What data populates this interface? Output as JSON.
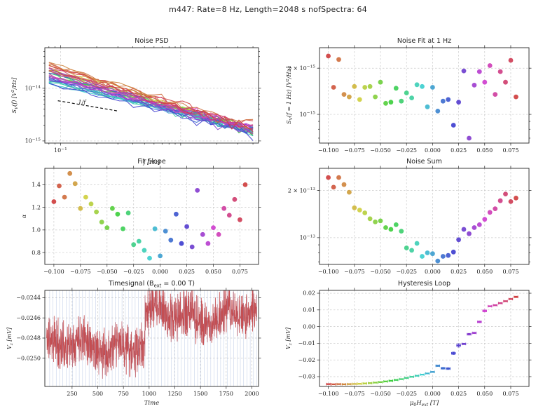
{
  "figure": {
    "title": "m447:  Rate=8 Hz,  Length=2048 s  nofSpectra:  64"
  },
  "colors": {
    "background": "#ffffff",
    "axis": "#262626",
    "text": "#1f1f1f",
    "grid": "#c9c9c9",
    "signal_red": "#c44e52",
    "segment_blue": "#8fa8d6",
    "guide_black": "#111111",
    "colormap": "hsv"
  },
  "field_sweep_T": [
    -0.1,
    -0.095,
    -0.09,
    -0.085,
    -0.08,
    -0.075,
    -0.07,
    -0.065,
    -0.06,
    -0.055,
    -0.05,
    -0.045,
    -0.04,
    -0.035,
    -0.03,
    -0.025,
    -0.02,
    -0.015,
    -0.01,
    -0.005,
    0.0,
    0.005,
    0.01,
    0.015,
    0.02,
    0.025,
    0.03,
    0.035,
    0.04,
    0.045,
    0.05,
    0.055,
    0.06,
    0.065,
    0.07,
    0.075,
    0.08
  ],
  "field_ticks": [
    {
      "v": -0.1,
      "label": "−0.100"
    },
    {
      "v": -0.075,
      "label": "−0.075"
    },
    {
      "v": -0.05,
      "label": "−0.050"
    },
    {
      "v": -0.025,
      "label": "−0.025"
    },
    {
      "v": 0.0,
      "label": "0.000"
    },
    {
      "v": 0.025,
      "label": "0.025"
    },
    {
      "v": 0.05,
      "label": "0.050"
    },
    {
      "v": 0.075,
      "label": "0.075"
    }
  ],
  "chart_data": [
    {
      "id": "noise_psd",
      "type": "line",
      "title": "Noise PSD",
      "xlabel": "f [Hz]",
      "ylabel": "S_{V}(f) [V^{2}/Hz]",
      "xlog": true,
      "ylog": true,
      "xlim": [
        0.074,
        4.45
      ],
      "ylim": [
        9.1e-16,
        5.9e-14
      ],
      "xticks": [
        {
          "v": 0.1,
          "label": "10^{−1}"
        },
        {
          "v": 1,
          "label": ""
        }
      ],
      "yticks": [
        {
          "v": 1e-14,
          "label": "10^{−14}"
        },
        {
          "v": 1e-15,
          "label": "10^{−15}"
        }
      ],
      "guide": {
        "x": [
          0.095,
          0.3
        ],
        "y": [
          5.8e-15,
          3.7e-15
        ],
        "label": "1/f",
        "label_x": 0.14,
        "label_y": 5e-15
      },
      "n_lines": 37,
      "lines_note": "37 rainbow power-law spectra S(f)=S1·f^−α, amplitudes from noise_fit_1hz, exponents from fit_slope"
    },
    {
      "id": "noise_fit_1hz",
      "type": "scatter",
      "title": "Noise Fit at 1 Hz",
      "ylabel": "S_{V}(f = 1 Hz) [V^{2}/Hz]",
      "ylog": true,
      "unit": 1e-15,
      "ylim": [
        6.5e-16,
        2.72e-15
      ],
      "yticks": [
        {
          "v": 2e-15,
          "label": "2 × 10^{−15}"
        },
        {
          "v": 1e-15,
          "label": "10^{−15}"
        }
      ],
      "xlim": [
        -0.1085,
        0.0925
      ],
      "xticks": "field",
      "values": [
        2.4,
        1.5,
        2.28,
        1.35,
        1.3,
        1.52,
        1.25,
        1.5,
        1.52,
        1.3,
        1.62,
        1.18,
        1.2,
        1.48,
        1.22,
        1.38,
        1.28,
        1.56,
        1.52,
        1.12,
        1.5,
        1.05,
        1.22,
        1.25,
        0.85,
        1.2,
        1.92,
        0.7,
        1.55,
        1.9,
        1.62,
        2.08,
        1.35,
        1.9,
        1.62,
        2.25,
        1.3
      ]
    },
    {
      "id": "fit_slope",
      "type": "scatter",
      "title": "Fit Slope",
      "ylabel": "α",
      "unit": 1,
      "ylim": [
        0.695,
        1.545
      ],
      "yticks": [
        {
          "v": 0.8,
          "label": "0.8"
        },
        {
          "v": 1.0,
          "label": "1.0"
        },
        {
          "v": 1.2,
          "label": "1.2"
        },
        {
          "v": 1.4,
          "label": "1.4"
        }
      ],
      "xlim": [
        -0.1085,
        0.0925
      ],
      "xticks": "field",
      "values": [
        1.25,
        1.39,
        1.29,
        1.5,
        1.41,
        1.19,
        1.29,
        1.23,
        1.16,
        1.07,
        1.02,
        1.19,
        1.14,
        1.01,
        1.15,
        0.87,
        0.9,
        0.82,
        0.75,
        1.01,
        0.77,
        0.99,
        0.91,
        1.14,
        0.88,
        1.03,
        0.85,
        1.35,
        0.96,
        0.88,
        1.02,
        0.96,
        1.19,
        1.13,
        1.27,
        1.09,
        1.4
      ]
    },
    {
      "id": "noise_sum",
      "type": "scatter",
      "title": "Noise Sum",
      "ylog": true,
      "unit": 1e-13,
      "ylim": [
        6.75e-14,
        2.77e-13
      ],
      "yticks": [
        {
          "v": 2e-13,
          "label": "2 × 10^{−13}"
        },
        {
          "v": 1e-13,
          "label": "10^{−13}"
        }
      ],
      "xlim": [
        -0.1085,
        0.0925
      ],
      "xticks": "field",
      "values": [
        2.42,
        2.1,
        2.42,
        2.18,
        1.95,
        1.55,
        1.5,
        1.44,
        1.32,
        1.26,
        1.28,
        1.16,
        1.13,
        1.21,
        1.1,
        0.86,
        0.83,
        0.92,
        0.76,
        0.8,
        0.79,
        0.71,
        0.76,
        0.77,
        0.81,
        0.97,
        1.13,
        1.06,
        1.16,
        1.21,
        1.31,
        1.45,
        1.53,
        1.72,
        1.9,
        1.7,
        1.79
      ]
    },
    {
      "id": "timesignal",
      "type": "line",
      "title": "Timesignal (B_{ext} = 0.00 T)",
      "ylabel": "V_{z} [mV]",
      "xlabel": "Time",
      "xlim": [
        -15,
        2065
      ],
      "ylim": [
        -0.02528,
        -0.024327
      ],
      "t_min": 2,
      "t_max": 2048,
      "baseline_before": -0.02487,
      "baseline_after": -0.02458,
      "switch_t": 960,
      "noise_amp": 0.00028,
      "segment_spacing": 32,
      "xticks": [
        {
          "v": 250,
          "label": "250"
        },
        {
          "v": 500,
          "label": "500"
        },
        {
          "v": 750,
          "label": "750"
        },
        {
          "v": 1000,
          "label": "1000"
        },
        {
          "v": 1250,
          "label": "1250"
        },
        {
          "v": 1500,
          "label": "1500"
        },
        {
          "v": 1750,
          "label": "1750"
        },
        {
          "v": 2000,
          "label": "2000"
        }
      ],
      "yticks": [
        {
          "v": -0.0244,
          "label": "−0.0244"
        },
        {
          "v": -0.0246,
          "label": "−0.0246"
        },
        {
          "v": -0.0248,
          "label": "−0.0248"
        },
        {
          "v": -0.025,
          "label": "−0.0250"
        }
      ]
    },
    {
      "id": "hysteresis",
      "type": "errorbar",
      "title": "Hysteresis Loop",
      "ylabel": "V_{z} [mV]",
      "xlabel": "μ_{0}H_{ext} [T]",
      "unit": 1,
      "ylim": [
        -0.0359,
        0.0217
      ],
      "yticks": [
        {
          "v": 0.02,
          "label": "0.02"
        },
        {
          "v": 0.01,
          "label": "0.01"
        },
        {
          "v": 0.0,
          "label": "0.00"
        },
        {
          "v": -0.01,
          "label": "−0.01"
        },
        {
          "v": -0.02,
          "label": "−0.02"
        },
        {
          "v": -0.03,
          "label": "−0.03"
        }
      ],
      "xlim": [
        -0.1085,
        0.0925
      ],
      "xticks": "field",
      "values": [
        -0.0345,
        -0.0346,
        -0.0345,
        -0.0346,
        -0.0345,
        -0.0344,
        -0.0343,
        -0.0341,
        -0.0339,
        -0.0336,
        -0.0333,
        -0.0329,
        -0.0325,
        -0.032,
        -0.0315,
        -0.0308,
        -0.0301,
        -0.0295,
        -0.0288,
        -0.0281,
        -0.0272,
        -0.0235,
        -0.025,
        -0.0252,
        -0.016,
        -0.0113,
        -0.0104,
        -0.0046,
        -0.0038,
        0.0028,
        0.0094,
        0.0122,
        0.0128,
        0.014,
        0.0152,
        0.0165,
        0.0178
      ],
      "yerr": [
        0.0002,
        0.0002,
        0.0002,
        0.0002,
        0.0002,
        0.0002,
        0.0002,
        0.0002,
        0.0002,
        0.0002,
        0.0002,
        0.0002,
        0.0002,
        0.0002,
        0.0002,
        0.0002,
        0.0002,
        0.0002,
        0.0002,
        0.0002,
        0.0003,
        0.0004,
        0.0005,
        0.0005,
        0.0007,
        0.001,
        0.0004,
        0.0005,
        0.0004,
        0.0005,
        0.0006,
        0.0003,
        0.0003,
        0.0003,
        0.0003,
        0.0003,
        0.0004
      ],
      "xerr": 0.0018
    }
  ]
}
